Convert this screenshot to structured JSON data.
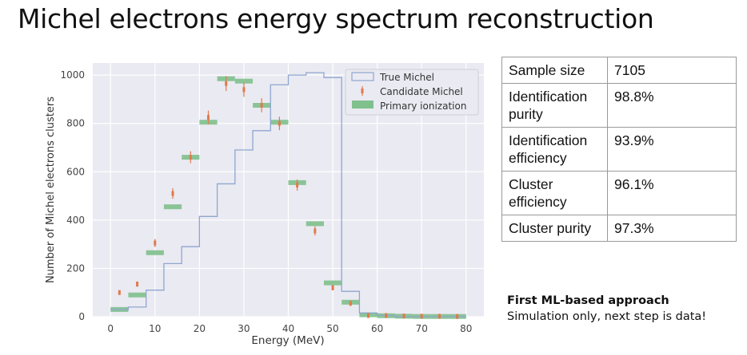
{
  "title": "Michel electrons energy spectrum reconstruction",
  "chart_data": {
    "type": "bar",
    "xlabel": "Energy (MeV)",
    "ylabel": "Number of Michel electrons clusters",
    "xlim": [
      -4,
      84
    ],
    "ylim": [
      0,
      1050
    ],
    "xticks": [
      0,
      10,
      20,
      30,
      40,
      50,
      60,
      70,
      80
    ],
    "yticks": [
      0,
      200,
      400,
      600,
      800,
      1000
    ],
    "grid": true,
    "legend_position": "top-right",
    "bin_edges": [
      0,
      4,
      8,
      12,
      16,
      20,
      24,
      28,
      32,
      36,
      40,
      44,
      48,
      52,
      56,
      60,
      64,
      68,
      72,
      76,
      80
    ],
    "bin_centers": [
      2,
      6,
      10,
      14,
      18,
      22,
      26,
      30,
      34,
      38,
      42,
      46,
      50,
      54,
      58,
      62,
      66,
      70,
      74,
      78
    ],
    "series": [
      {
        "name": "True Michel",
        "kind": "step",
        "color": "#8fa6cf",
        "values": [
          30,
          40,
          110,
          220,
          290,
          415,
          550,
          690,
          770,
          960,
          1000,
          1010,
          990,
          105,
          15,
          5,
          0,
          0,
          0,
          0
        ]
      },
      {
        "name": "Candidate Michel",
        "kind": "points",
        "color": "#e07a4a",
        "values": [
          100,
          135,
          305,
          510,
          660,
          825,
          965,
          940,
          875,
          800,
          545,
          355,
          120,
          55,
          5,
          5,
          3,
          2,
          2,
          1
        ],
        "errors": [
          9,
          11,
          17,
          22,
          25,
          28,
          31,
          30,
          29,
          28,
          23,
          19,
          11,
          7,
          2,
          2,
          2,
          1,
          1,
          1
        ]
      },
      {
        "name": "Primary ionization",
        "kind": "band",
        "color": "#7fc08c",
        "values": [
          30,
          90,
          265,
          455,
          660,
          805,
          985,
          975,
          875,
          805,
          555,
          385,
          140,
          60,
          8,
          4,
          2,
          1,
          1,
          1
        ]
      }
    ]
  },
  "table": [
    {
      "label": "Sample size",
      "value": "7105"
    },
    {
      "label": "Identification purity",
      "value": "98.8%"
    },
    {
      "label": "Identification efficiency",
      "value": "93.9%"
    },
    {
      "label": "Cluster efficiency",
      "value": "96.1%"
    },
    {
      "label": "Cluster purity",
      "value": "97.3%"
    }
  ],
  "notes": {
    "headline": "First ML-based approach",
    "text": "Simulation only, next step is data!"
  }
}
